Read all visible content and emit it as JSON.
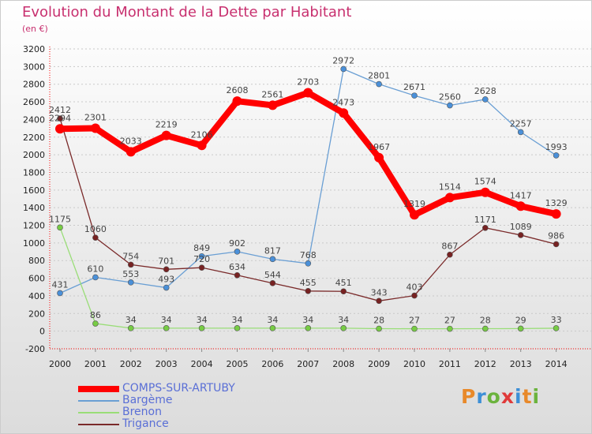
{
  "title": "Evolution du Montant de la Dette par Habitant",
  "subtitle": "(en €)",
  "brand": {
    "text": "Proxiti",
    "colors": [
      "#e8892a",
      "#3d8fd6",
      "#6bb33d",
      "#e03a3a",
      "#3d8fd6",
      "#e8892a",
      "#6bb33d"
    ]
  },
  "chart_data": {
    "type": "line",
    "categories": [
      "2000",
      "2001",
      "2002",
      "2003",
      "2004",
      "2005",
      "2006",
      "2007",
      "2008",
      "2009",
      "2010",
      "2011",
      "2012",
      "2013",
      "2014"
    ],
    "ylim": [
      -200,
      3200
    ],
    "yticks": [
      -200,
      0,
      200,
      400,
      600,
      800,
      1000,
      1200,
      1400,
      1600,
      1800,
      2000,
      2200,
      2400,
      2600,
      2800,
      3000,
      3200
    ],
    "grid": "horizontal dotted",
    "legend_position": "bottom-left",
    "series": [
      {
        "name": "COMPS-SUR-ARTUBY",
        "color": "#ff0000",
        "width": 8,
        "r": 6,
        "marker": "#ff0000",
        "values": [
          2294,
          2301,
          2033,
          2219,
          2106,
          2608,
          2561,
          2703,
          2473,
          1967,
          1319,
          1514,
          1574,
          1417,
          1329
        ],
        "labels": [
          "2294",
          "2301",
          "2033",
          "2219",
          "2106",
          "2608",
          "2561",
          "2703",
          "2473",
          "1967",
          "1319",
          "1514",
          "1574",
          "1417",
          "1329"
        ]
      },
      {
        "name": "Bargème",
        "color": "#6a9fd4",
        "width": 1.3,
        "r": 3.5,
        "marker": "#4a90d9",
        "values": [
          431,
          610,
          553,
          493,
          849,
          902,
          817,
          768,
          2972,
          2801,
          2671,
          2560,
          2628,
          2257,
          1993
        ],
        "labels": [
          "431",
          "610",
          "553",
          "493",
          "849",
          "902",
          "817",
          "768",
          "2972",
          "2801",
          "2671",
          "2560",
          "2628",
          "2257",
          "1993"
        ]
      },
      {
        "name": "Brenon",
        "color": "#99dd77",
        "width": 1.3,
        "r": 3.5,
        "marker": "#77cc44",
        "values": [
          1175,
          86,
          34,
          34,
          34,
          34,
          34,
          34,
          34,
          28,
          27,
          27,
          28,
          29,
          33
        ],
        "labels": [
          "1175",
          "86",
          "34",
          "34",
          "34",
          "34",
          "34",
          "34",
          "34",
          "28",
          "27",
          "27",
          "28",
          "29",
          "33"
        ]
      },
      {
        "name": "Trigance",
        "color": "#7a2a2a",
        "width": 1.3,
        "r": 3.5,
        "marker": "#772222",
        "values": [
          2412,
          1060,
          754,
          701,
          720,
          634,
          544,
          455,
          451,
          343,
          403,
          867,
          1171,
          1089,
          986
        ],
        "labels": [
          "2412",
          "1060",
          "754",
          "701",
          "720",
          "634",
          "544",
          "455",
          "451",
          "343",
          "403",
          "867",
          "1171",
          "1089",
          "986"
        ]
      }
    ]
  }
}
